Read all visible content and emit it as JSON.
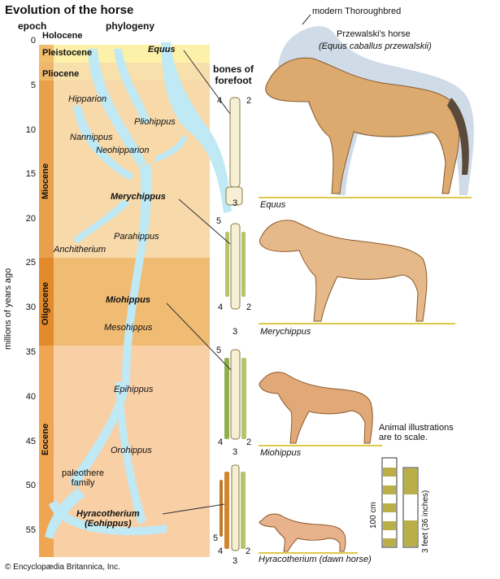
{
  "title": "Evolution of the horse",
  "headers": {
    "epoch": "epoch",
    "phylogeny": "phylogeny",
    "bones": "bones of\nforefoot"
  },
  "y_axis_label": "millions of years ago",
  "ticks": [
    "0",
    "5",
    "10",
    "15",
    "20",
    "25",
    "30",
    "35",
    "40",
    "45",
    "50",
    "55"
  ],
  "epochs": {
    "holocene": "Holocene",
    "pleistocene": "Pleistocene",
    "pliocene": "Pliocene",
    "miocene": "Miocene",
    "oligocene": "Oligocene",
    "eocene": "Eocene"
  },
  "genera": {
    "equus": "Equus",
    "hipparion": "Hipparion",
    "pliohippus": "Pliohippus",
    "nannippus": "Nannippus",
    "neohipparion": "Neohipparion",
    "merychippus": "Merychippus",
    "parahippus": "Parahippus",
    "anchitherium": "Anchitherium",
    "miohippus": "Miohippus",
    "mesohippus": "Mesohippus",
    "epihippus": "Epihippus",
    "orohippus": "Orohippus",
    "paleothere": "paleothere\nfamily",
    "hyracotherium": "Hyracotherium\n(Eohippus)"
  },
  "horse_labels": {
    "thoroughbred": "modern Thoroughbred",
    "przewalski": "Przewalski's horse",
    "przewalski_latin": "(Equus caballus przewalskii)",
    "equus": "Equus",
    "merychippus": "Merychippus",
    "miohippus": "Miohippus",
    "hyracotherium": "Hyracotherium (dawn horse)"
  },
  "digits": {
    "equus": [
      "4",
      "2",
      "3"
    ],
    "merychippus": [
      "5",
      "4",
      "2",
      "3"
    ],
    "miohippus": [
      "5",
      "4",
      "2",
      "3"
    ],
    "hyracotherium": [
      "5",
      "4",
      "2",
      "3"
    ]
  },
  "scale_note": "Animal illustrations\nare to scale.",
  "scale_bars": {
    "metric": "100 cm",
    "imperial": "3 feet (36 inches)"
  },
  "copyright": "© Encyclopædia Britannica, Inc.",
  "colors": {
    "pleistocene": "#fdf0a8",
    "pliocene": "#f7d9a8",
    "miocene": "#f5d19c",
    "oligocene": "#eeb56a",
    "eocene": "#f7c79a",
    "epoch_bar": "#e8953a",
    "phylogeny": "#bfe9f4",
    "ground": "#e9d15a"
  }
}
